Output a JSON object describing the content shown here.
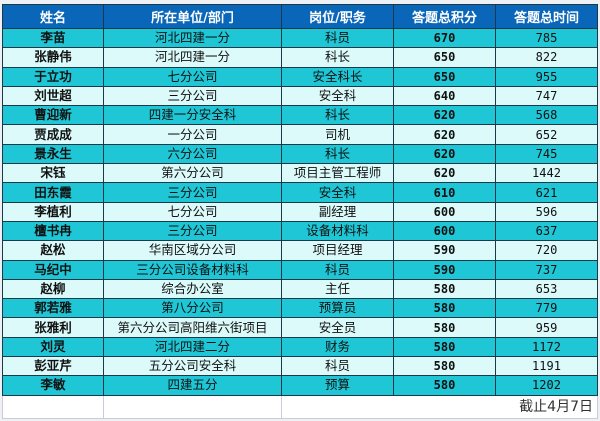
{
  "header": [
    "姓名",
    "所在单位/部门",
    "岗位/职务",
    "答题总积分",
    "答题总时间"
  ],
  "rows": [
    [
      "李苗",
      "河北四建一分",
      "科员",
      "670",
      "785"
    ],
    [
      "张静伟",
      "河北四建一分",
      "科长",
      "650",
      "822"
    ],
    [
      "于立功",
      "七分公司",
      "安全科长",
      "650",
      "955"
    ],
    [
      "刘世超",
      "三分公司",
      "安全科",
      "640",
      "747"
    ],
    [
      "曹迎新",
      "四建一分安全科",
      "科长",
      "620",
      "568"
    ],
    [
      "贾成成",
      "一分公司",
      "司机",
      "620",
      "652"
    ],
    [
      "景永生",
      "六分公司",
      "科长",
      "620",
      "745"
    ],
    [
      "宋钰",
      "第六分公司",
      "项目主管工程师",
      "620",
      "1442"
    ],
    [
      "田东霞",
      "三分公司",
      "安全科",
      "610",
      "621"
    ],
    [
      "李植利",
      "七分公司",
      "副经理",
      "600",
      "596"
    ],
    [
      "檀书冉",
      "三分公司",
      "设备材料科",
      "600",
      "637"
    ],
    [
      "赵松",
      "华南区域分公司",
      "项目经理",
      "590",
      "720"
    ],
    [
      "马纪中",
      "三分公司设备材料科",
      "科员",
      "590",
      "737"
    ],
    [
      "赵柳",
      "综合办公室",
      "主任",
      "580",
      "653"
    ],
    [
      "郭若雅",
      "第八分公司",
      "预算员",
      "580",
      "779"
    ],
    [
      "张雅利",
      "第六分公司高阳维六街项目",
      "安全员",
      "580",
      "959"
    ],
    [
      "刘灵",
      "河北四建二分",
      "财务",
      "580",
      "1172"
    ],
    [
      "彭亚芹",
      "五分公司安全科",
      "科员",
      "580",
      "1191"
    ],
    [
      "李敏",
      "四建五分",
      "预算",
      "580",
      "1202"
    ]
  ],
  "footer_note": "截止4月7日",
  "colors": {
    "header": "#0a66b8",
    "row_odd": "#1ec6d6",
    "row_even": "#dcfafa"
  }
}
